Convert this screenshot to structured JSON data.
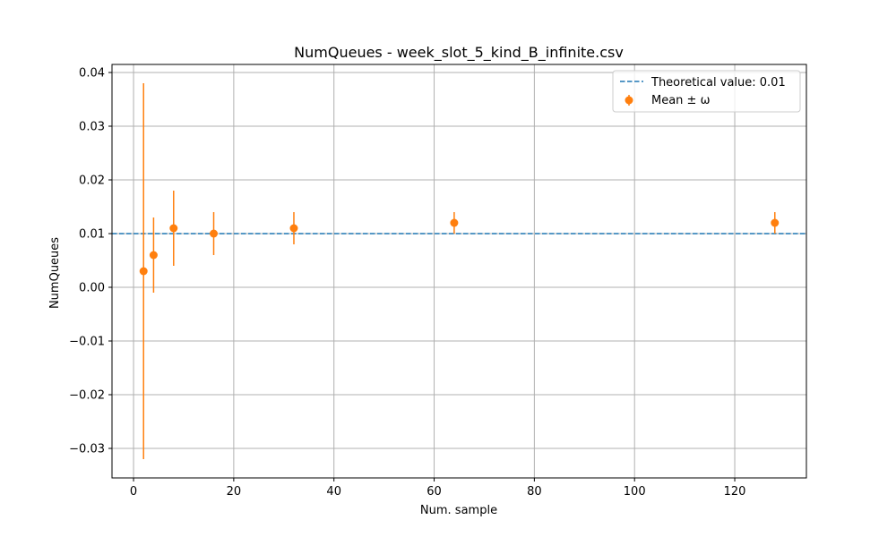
{
  "chart_data": {
    "type": "scatter",
    "title": "NumQueues - week_slot_5_kind_B_infinite.csv",
    "xlabel": "Num. sample",
    "ylabel": "NumQueues",
    "xlim": [
      -4.3,
      134.3
    ],
    "ylim": [
      -0.0355,
      0.0415
    ],
    "xticks": [
      0,
      20,
      40,
      60,
      80,
      100,
      120
    ],
    "xtick_labels": [
      "0",
      "20",
      "40",
      "60",
      "80",
      "100",
      "120"
    ],
    "yticks": [
      -0.03,
      -0.02,
      -0.01,
      0.0,
      0.01,
      0.02,
      0.03,
      0.04
    ],
    "ytick_labels": [
      "−0.03",
      "−0.02",
      "−0.01",
      "0.00",
      "0.01",
      "0.02",
      "0.03",
      "0.04"
    ],
    "grid": true,
    "legend_position": "top-right",
    "reference_line": {
      "name": "Theoretical value: 0.01",
      "y": 0.01,
      "style": "dashed",
      "color": "#1f77b4"
    },
    "series": [
      {
        "name": "Mean ± ω",
        "color": "#ff7f0e",
        "points": [
          {
            "x": 2,
            "y": 0.003,
            "err": 0.035
          },
          {
            "x": 4,
            "y": 0.006,
            "err": 0.007
          },
          {
            "x": 8,
            "y": 0.011,
            "err": 0.007
          },
          {
            "x": 16,
            "y": 0.01,
            "err": 0.004
          },
          {
            "x": 32,
            "y": 0.011,
            "err": 0.003
          },
          {
            "x": 64,
            "y": 0.012,
            "err": 0.002
          },
          {
            "x": 128,
            "y": 0.012,
            "err": 0.002
          }
        ]
      }
    ],
    "legend": {
      "line_label": "Theoretical value: 0.01",
      "marker_label": "Mean ± ω"
    }
  }
}
